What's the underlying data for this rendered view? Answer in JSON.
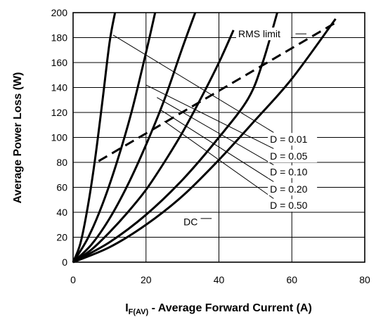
{
  "chart_data": {
    "type": "line",
    "title": "",
    "xlabel": {
      "main": "I",
      "sub": "F(AV)",
      "rest": " - Average Forward Current (A)"
    },
    "ylabel": "Average Power Loss (W)",
    "xlim": [
      0,
      80
    ],
    "ylim": [
      0,
      200
    ],
    "x_ticks": [
      0,
      20,
      40,
      60,
      80
    ],
    "y_ticks": [
      0,
      20,
      40,
      60,
      80,
      100,
      120,
      140,
      160,
      180,
      200
    ],
    "grid": true,
    "series": [
      {
        "name": "D = 0.01",
        "style": "solid",
        "x": [
          0,
          2,
          4,
          6,
          8,
          10,
          11.5
        ],
        "y": [
          0,
          15,
          44,
          82,
          128,
          176,
          200
        ]
      },
      {
        "name": "D = 0.05",
        "style": "solid",
        "x": [
          0,
          4,
          8,
          12,
          16,
          20,
          22.5
        ],
        "y": [
          0,
          19,
          46,
          80,
          120,
          168,
          200
        ]
      },
      {
        "name": "D = 0.10",
        "style": "solid",
        "x": [
          0,
          5,
          10,
          15,
          20,
          25,
          30,
          33.5
        ],
        "y": [
          0,
          14,
          35,
          62,
          94,
          130,
          172,
          200
        ]
      },
      {
        "name": "D = 0.20",
        "style": "solid",
        "x": [
          0,
          5,
          10,
          15,
          20,
          25,
          30,
          35,
          40,
          44
        ],
        "y": [
          0,
          10,
          24,
          40,
          58,
          80,
          104,
          131,
          160,
          186
        ]
      },
      {
        "name": "D = 0.50",
        "style": "solid",
        "x": [
          0,
          10,
          20,
          30,
          40,
          48,
          52,
          56
        ],
        "y": [
          0,
          16,
          38,
          66,
          100,
          131,
          160,
          200
        ]
      },
      {
        "name": "DC",
        "style": "solid",
        "x": [
          0,
          10,
          20,
          30,
          40,
          50,
          60,
          72
        ],
        "y": [
          0,
          12,
          30,
          53,
          82,
          114,
          147,
          195
        ]
      },
      {
        "name": "RMS limit",
        "style": "dashed",
        "x": [
          7,
          72
        ],
        "y": [
          81,
          192
        ]
      }
    ],
    "annotations": [
      {
        "text": "RMS limit",
        "x": 45.3,
        "y": 183
      },
      {
        "text": "D = 0.01",
        "x": 54,
        "y": 98.5
      },
      {
        "text": "D = 0.05",
        "x": 54,
        "y": 85
      },
      {
        "text": "D = 0.10",
        "x": 54,
        "y": 72.5
      },
      {
        "text": "D = 0.20",
        "x": 54,
        "y": 58.5
      },
      {
        "text": "D = 0.50",
        "x": 54,
        "y": 45.5
      },
      {
        "text": "DC",
        "x": 30.3,
        "y": 32.5
      }
    ],
    "leaders": [
      {
        "from": [
          11,
          182
        ],
        "to": [
          55,
          104
        ]
      },
      {
        "from": [
          20,
          142
        ],
        "to": [
          55,
          91
        ]
      },
      {
        "from": [
          23,
          132
        ],
        "to": [
          55,
          78
        ]
      },
      {
        "from": [
          24,
          122
        ],
        "to": [
          55,
          64.5
        ]
      },
      {
        "from": [
          25,
          113
        ],
        "to": [
          55,
          51
        ]
      },
      {
        "from": [
          35,
          35
        ],
        "to": [
          38,
          35
        ]
      },
      {
        "from": [
          61,
          183
        ],
        "to": [
          64,
          183
        ]
      }
    ]
  }
}
